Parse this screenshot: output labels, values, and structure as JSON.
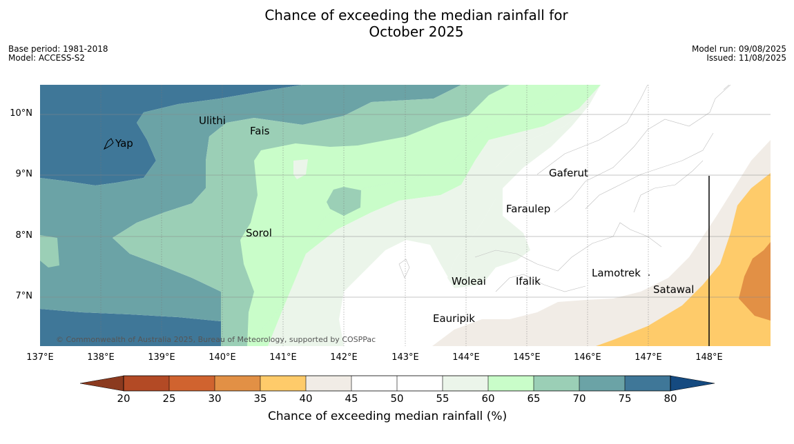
{
  "title_line1": "Chance of exceeding the median rainfall for",
  "title_line2": "October 2025",
  "meta": {
    "base_period": "Base period: 1981-2018",
    "model": "Model: ACCESS-S2",
    "model_run": "Model run: 09/08/2025",
    "issued": "Issued: 11/08/2025"
  },
  "copyright": "© Commonwealth of Australia 2025, Bureau of Meteorology, supported by COSPPac",
  "places": {
    "ulithi": "Ulithi",
    "yap": "Yap",
    "fais": "Fais",
    "gaferut": "Gaferut",
    "faraulep": "Faraulep",
    "sorol": "Sorol",
    "woleai": "Woleai",
    "ifalik": "Ifalik",
    "lamotrek": "Lamotrek",
    "satawal": "Satawal",
    "eauripik": "Eauripik"
  },
  "lat_labels": [
    "10°N",
    "9°N",
    "8°N",
    "7°N"
  ],
  "lon_labels": [
    "137°E",
    "138°E",
    "139°E",
    "140°E",
    "141°E",
    "142°E",
    "143°E",
    "144°E",
    "145°E",
    "146°E",
    "147°E",
    "148°E"
  ],
  "colorbar": {
    "title": "Chance of exceeding median rainfall (%)",
    "ticks": [
      "20",
      "25",
      "30",
      "35",
      "40",
      "45",
      "50",
      "55",
      "60",
      "65",
      "70",
      "75",
      "80"
    ],
    "colors": [
      "#8b3a1f",
      "#b34a25",
      "#d0632f",
      "#e29045",
      "#fecb6a",
      "#f1ece6",
      "#ffffff",
      "#ffffff",
      "#ebf5ea",
      "#c9fdc9",
      "#9bcfb6",
      "#6ba3a6",
      "#3f7798",
      "#154a80"
    ]
  }
}
